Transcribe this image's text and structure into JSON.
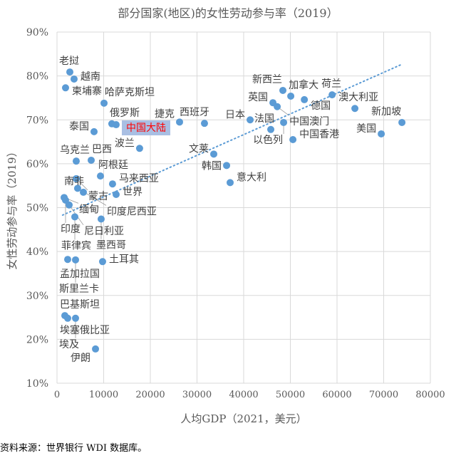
{
  "chart_data": {
    "type": "scatter",
    "title": "部分国家(地区)的女性劳动参与率（2019）",
    "xlabel": "人均GDP（2021，美元）",
    "ylabel": "女性劳动参与率（2019）",
    "xlim": [
      0,
      80000
    ],
    "ylim": [
      10,
      90
    ],
    "x_ticks": [
      "0",
      "10000",
      "20000",
      "30000",
      "40000",
      "50000",
      "60000",
      "70000",
      "80000"
    ],
    "y_ticks": [
      "10%",
      "20%",
      "30%",
      "40%",
      "50%",
      "60%",
      "70%",
      "80%",
      "90%"
    ],
    "grid": true,
    "trendline": {
      "style": "dotted",
      "from": [
        1200,
        48.3
      ],
      "to": [
        74000,
        82.7
      ]
    },
    "highlight": "中国大陆",
    "points": [
      {
        "name": "老挝",
        "x": 2750,
        "y": 80.9
      },
      {
        "name": "越南",
        "x": 3660,
        "y": 79.3
      },
      {
        "name": "柬埔寨",
        "x": 1830,
        "y": 77.3
      },
      {
        "name": "哈萨克斯坦",
        "x": 10080,
        "y": 73.8
      },
      {
        "name": "俄罗斯",
        "x": 11750,
        "y": 69.1
      },
      {
        "name": "中国大陆",
        "x": 12670,
        "y": 68.9
      },
      {
        "name": "泰国",
        "x": 7940,
        "y": 67.3
      },
      {
        "name": "捷克",
        "x": 26260,
        "y": 69.5
      },
      {
        "name": "西班牙",
        "x": 31600,
        "y": 69.2
      },
      {
        "name": "波兰",
        "x": 17700,
        "y": 63.5
      },
      {
        "name": "乌克兰",
        "x": 4120,
        "y": 60.6
      },
      {
        "name": "巴西",
        "x": 7330,
        "y": 60.8
      },
      {
        "name": "蒙古",
        "x": 4120,
        "y": 56.6
      },
      {
        "name": "阿根廷",
        "x": 9310,
        "y": 57.2
      },
      {
        "name": "马来西亚",
        "x": 11900,
        "y": 55.4
      },
      {
        "name": "印度尼西亚",
        "x": 4420,
        "y": 54.4
      },
      {
        "name": "南非",
        "x": 5650,
        "y": 53.5
      },
      {
        "name": "世界",
        "x": 12670,
        "y": 53.0
      },
      {
        "name": "缅甸",
        "x": 1530,
        "y": 52.3
      },
      {
        "name": "印度",
        "x": 1830,
        "y": 51.7
      },
      {
        "name": "尼日利亚",
        "x": 2600,
        "y": 50.6
      },
      {
        "name": "菲律宾",
        "x": 3820,
        "y": 47.9
      },
      {
        "name": "墨西哥",
        "x": 9460,
        "y": 47.4
      },
      {
        "name": "孟加拉国",
        "x": 2290,
        "y": 38.2
      },
      {
        "name": "斯里兰卡",
        "x": 3970,
        "y": 38.1
      },
      {
        "name": "土耳其",
        "x": 9770,
        "y": 37.7
      },
      {
        "name": "巴基斯坦",
        "x": 1680,
        "y": 25.4
      },
      {
        "name": "埃塞俄比亚",
        "x": 2290,
        "y": 24.8
      },
      {
        "name": "埃及",
        "x": 3970,
        "y": 24.8
      },
      {
        "name": "伊朗",
        "x": 8250,
        "y": 17.8
      },
      {
        "name": "新西兰",
        "x": 48400,
        "y": 76.7
      },
      {
        "name": "加拿大",
        "x": 50090,
        "y": 75.4
      },
      {
        "name": "德国",
        "x": 53000,
        "y": 74.6
      },
      {
        "name": "荷兰",
        "x": 58950,
        "y": 75.7
      },
      {
        "name": "英国",
        "x": 46270,
        "y": 73.9
      },
      {
        "name": "中国澳门",
        "x": 47190,
        "y": 73.0
      },
      {
        "name": "澳大利亚",
        "x": 63830,
        "y": 72.6
      },
      {
        "name": "以色列",
        "x": 48560,
        "y": 69.4
      },
      {
        "name": "法国",
        "x": 45810,
        "y": 67.8
      },
      {
        "name": "中国香港",
        "x": 50550,
        "y": 65.5
      },
      {
        "name": "美国",
        "x": 69480,
        "y": 66.8
      },
      {
        "name": "新加坡",
        "x": 73910,
        "y": 69.4
      },
      {
        "name": "日本",
        "x": 41380,
        "y": 70.0
      },
      {
        "name": "韩国",
        "x": 36340,
        "y": 59.6
      },
      {
        "name": "文莱",
        "x": 33590,
        "y": 62.2
      },
      {
        "name": "意大利",
        "x": 37100,
        "y": 55.7
      }
    ],
    "source": "资料来源：世界银行 WDI 数据库。",
    "colors": {
      "point": "#5b9bd5",
      "highlight_bg": "#a9bfe3",
      "highlight_text": "#ff0000",
      "grid": "#d9d9d9"
    }
  }
}
